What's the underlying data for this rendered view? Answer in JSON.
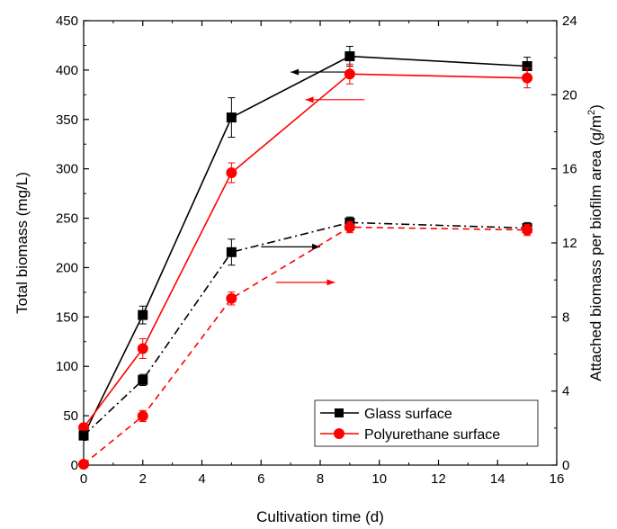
{
  "chart_data": {
    "type": "line",
    "xlabel": "Cultivation time (d)",
    "ylabel_left": "Total biomass (mg/L)",
    "ylabel_right_main": "Attached biomass per biofilm area (g/m",
    "ylabel_right_sup": "2",
    "ylabel_right_close": ")",
    "xlim": [
      0,
      16
    ],
    "ylim_left": [
      0,
      450
    ],
    "ylim_right": [
      0,
      24
    ],
    "x_ticks": [
      "0",
      "2",
      "4",
      "6",
      "8",
      "10",
      "12",
      "14",
      "16"
    ],
    "y_left_ticks": [
      "0",
      "50",
      "100",
      "150",
      "200",
      "250",
      "300",
      "350",
      "400",
      "450"
    ],
    "y_right_ticks": [
      "0",
      "4",
      "8",
      "12",
      "16",
      "20",
      "24"
    ],
    "grid": false,
    "legend_position": "bottom-right",
    "colors": {
      "glass": "#000000",
      "polyurethane": "#ff0000"
    },
    "series": [
      {
        "name": "Glass surface",
        "axis": "left",
        "line": "solid",
        "marker": "square",
        "x": [
          0,
          2,
          5,
          9,
          15
        ],
        "y": [
          30,
          152,
          352,
          414,
          404
        ],
        "err": [
          0,
          9,
          20,
          10,
          9
        ]
      },
      {
        "name": "Polyurethane surface",
        "axis": "left",
        "line": "solid",
        "marker": "circle",
        "x": [
          0,
          2,
          5,
          9,
          15
        ],
        "y": [
          38,
          118,
          296,
          396,
          392
        ],
        "err": [
          0,
          10,
          10,
          10,
          10
        ]
      },
      {
        "name": "Glass surface",
        "axis": "right",
        "line": "dashdot",
        "marker": "square",
        "x": [
          0,
          2,
          5,
          9,
          15
        ],
        "y": [
          1.6,
          4.6,
          11.5,
          13.1,
          12.8
        ],
        "err": [
          0,
          0.3,
          0.7,
          0.3,
          0.3
        ]
      },
      {
        "name": "Polyurethane surface",
        "axis": "right",
        "line": "dashed",
        "marker": "circle",
        "x": [
          0,
          2,
          5,
          9,
          15
        ],
        "y": [
          0.05,
          2.65,
          9.0,
          12.85,
          12.7
        ],
        "err": [
          0,
          0.3,
          0.35,
          0.3,
          0.3
        ]
      }
    ],
    "annotations": [
      {
        "type": "arrow",
        "direction": "left",
        "color": "#000000",
        "x": [
          7.0,
          9.0
        ],
        "y_left": 398
      },
      {
        "type": "arrow",
        "direction": "left",
        "color": "#ff0000",
        "x": [
          7.5,
          9.5
        ],
        "y_left": 370
      },
      {
        "type": "arrow",
        "direction": "right",
        "color": "#000000",
        "x": [
          6.0,
          8.0
        ],
        "y_left": 221
      },
      {
        "type": "arrow",
        "direction": "right",
        "color": "#ff0000",
        "x": [
          6.5,
          8.5
        ],
        "y_left": 185
      }
    ]
  }
}
